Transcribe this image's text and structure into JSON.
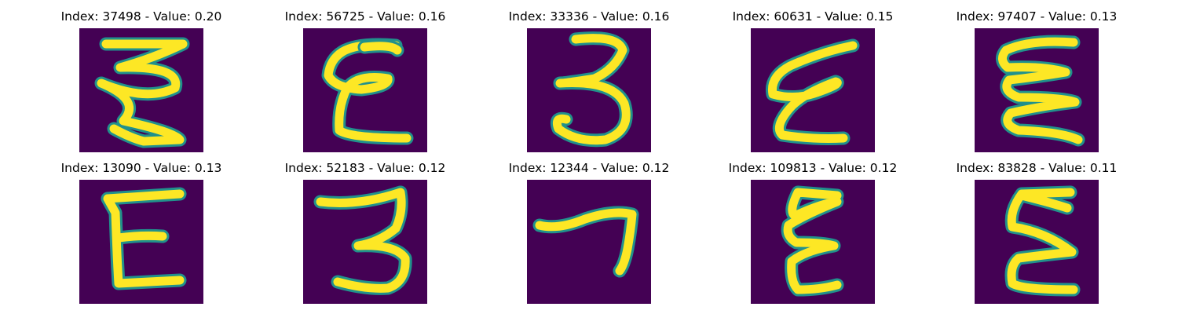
{
  "figure": {
    "colors": {
      "background": "#440154",
      "stroke_mid": "#21918c",
      "stroke_core": "#fde725"
    },
    "panels": [
      {
        "title": "Index: 37498 - Value: 0.20",
        "glyph": "triple-zigzag"
      },
      {
        "title": "Index: 56725 - Value: 0.16",
        "glyph": "curly-E"
      },
      {
        "title": "Index: 33336 - Value: 0.16",
        "glyph": "three"
      },
      {
        "title": "Index: 60631 - Value: 0.15",
        "glyph": "slanted-E"
      },
      {
        "title": "Index: 97407 - Value: 0.13",
        "glyph": "wavy-E"
      },
      {
        "title": "Index: 13090 - Value: 0.13",
        "glyph": "block-E"
      },
      {
        "title": "Index: 52183 - Value: 0.12",
        "glyph": "three-open"
      },
      {
        "title": "Index: 12344 - Value: 0.12",
        "glyph": "seven"
      },
      {
        "title": "Index: 109813 - Value: 0.12",
        "glyph": "narrow-E"
      },
      {
        "title": "Index: 83828 - Value: 0.11",
        "glyph": "tall-E"
      }
    ]
  }
}
